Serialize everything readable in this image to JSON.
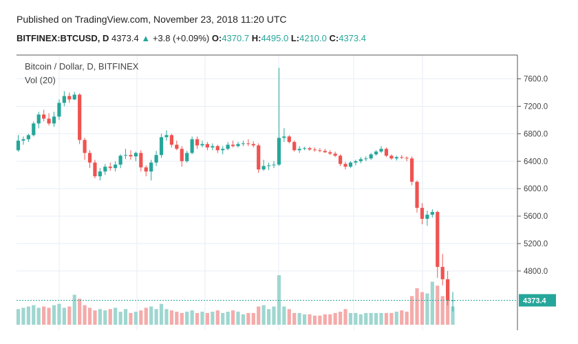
{
  "header": {
    "published": "Published on TradingView.com, November 23, 2018 11:20 UTC",
    "symbol": "BITFINEX:BTCUSD, D",
    "last": "4373.4",
    "arrow": "▲",
    "change": "+3.8 (+0.09%)",
    "o_label": "O:",
    "o_value": "4370.7",
    "h_label": "H:",
    "h_value": "4495.0",
    "l_label": "L:",
    "l_value": "4210.0",
    "c_label": "C:",
    "c_value": "4373.4"
  },
  "colors": {
    "up": "#26a69a",
    "down": "#ef5350",
    "vol_up": "#9fd6d0",
    "vol_down": "#f4abaa",
    "grid": "#e6eef5",
    "axis": "#555555"
  },
  "chart_data": {
    "type": "candlestick",
    "title": "Bitcoin / Dollar, D, BITFINEX",
    "volume_label": "Vol (20)",
    "y_ticks": [
      "7600.0",
      "7200.0",
      "6800.0",
      "6400.0",
      "6000.0",
      "5600.0",
      "5200.0",
      "4800.0"
    ],
    "ylim": [
      4210,
      7760
    ],
    "last_price": 4373.4,
    "last_price_label": "4373.4",
    "grid": true,
    "candles": [
      [
        6560,
        6780,
        6540,
        6700
      ],
      [
        6700,
        6760,
        6640,
        6720
      ],
      [
        6720,
        6800,
        6680,
        6780
      ],
      [
        6780,
        6980,
        6760,
        6950
      ],
      [
        6950,
        7120,
        6880,
        7080
      ],
      [
        7080,
        7150,
        6980,
        7020
      ],
      [
        7020,
        7100,
        6920,
        6950
      ],
      [
        6950,
        7120,
        6900,
        7050
      ],
      [
        7050,
        7300,
        7000,
        7250
      ],
      [
        7250,
        7420,
        7200,
        7350
      ],
      [
        7350,
        7400,
        7250,
        7300
      ],
      [
        7300,
        7410,
        7290,
        7370
      ],
      [
        7370,
        7390,
        6650,
        6710
      ],
      [
        6710,
        6740,
        6420,
        6520
      ],
      [
        6520,
        6560,
        6300,
        6380
      ],
      [
        6380,
        6420,
        6150,
        6180
      ],
      [
        6180,
        6300,
        6120,
        6250
      ],
      [
        6250,
        6360,
        6200,
        6320
      ],
      [
        6320,
        6380,
        6260,
        6300
      ],
      [
        6300,
        6400,
        6250,
        6350
      ],
      [
        6350,
        6500,
        6300,
        6480
      ],
      [
        6480,
        6580,
        6430,
        6490
      ],
      [
        6490,
        6560,
        6420,
        6470
      ],
      [
        6470,
        6540,
        6400,
        6520
      ],
      [
        6520,
        6560,
        6250,
        6310
      ],
      [
        6310,
        6340,
        6180,
        6250
      ],
      [
        6250,
        6420,
        6120,
        6380
      ],
      [
        6380,
        6550,
        6330,
        6490
      ],
      [
        6490,
        6800,
        6450,
        6750
      ],
      [
        6750,
        6850,
        6700,
        6780
      ],
      [
        6780,
        6800,
        6600,
        6640
      ],
      [
        6640,
        6700,
        6560,
        6580
      ],
      [
        6580,
        6620,
        6320,
        6400
      ],
      [
        6400,
        6550,
        6380,
        6520
      ],
      [
        6520,
        6760,
        6500,
        6720
      ],
      [
        6720,
        6760,
        6580,
        6630
      ],
      [
        6630,
        6700,
        6600,
        6650
      ],
      [
        6650,
        6680,
        6560,
        6600
      ],
      [
        6600,
        6660,
        6560,
        6620
      ],
      [
        6620,
        6640,
        6520,
        6560
      ],
      [
        6560,
        6620,
        6500,
        6580
      ],
      [
        6580,
        6680,
        6560,
        6640
      ],
      [
        6640,
        6700,
        6600,
        6620
      ],
      [
        6620,
        6680,
        6600,
        6650
      ],
      [
        6650,
        6700,
        6620,
        6660
      ],
      [
        6660,
        6720,
        6620,
        6650
      ],
      [
        6650,
        6690,
        6600,
        6630
      ],
      [
        6630,
        6660,
        6230,
        6280
      ],
      [
        6280,
        6420,
        6260,
        6330
      ],
      [
        6330,
        6380,
        6270,
        6340
      ],
      [
        6340,
        6400,
        6300,
        6350
      ],
      [
        6350,
        7760,
        6330,
        6740
      ],
      [
        6740,
        6880,
        6680,
        6760
      ],
      [
        6760,
        6780,
        6660,
        6680
      ],
      [
        6680,
        6700,
        6540,
        6560
      ],
      [
        6560,
        6620,
        6520,
        6580
      ],
      [
        6580,
        6610,
        6560,
        6590
      ],
      [
        6590,
        6610,
        6550,
        6570
      ],
      [
        6570,
        6600,
        6540,
        6560
      ],
      [
        6560,
        6590,
        6530,
        6550
      ],
      [
        6550,
        6580,
        6520,
        6530
      ],
      [
        6530,
        6560,
        6490,
        6510
      ],
      [
        6510,
        6540,
        6460,
        6480
      ],
      [
        6480,
        6500,
        6330,
        6360
      ],
      [
        6360,
        6390,
        6280,
        6320
      ],
      [
        6320,
        6400,
        6300,
        6380
      ],
      [
        6380,
        6420,
        6340,
        6400
      ],
      [
        6400,
        6460,
        6370,
        6430
      ],
      [
        6430,
        6470,
        6400,
        6440
      ],
      [
        6440,
        6520,
        6420,
        6500
      ],
      [
        6500,
        6560,
        6480,
        6540
      ],
      [
        6540,
        6620,
        6520,
        6580
      ],
      [
        6580,
        6600,
        6460,
        6480
      ],
      [
        6480,
        6500,
        6420,
        6440
      ],
      [
        6440,
        6480,
        6410,
        6460
      ],
      [
        6460,
        6490,
        6430,
        6450
      ],
      [
        6450,
        6470,
        6400,
        6440
      ],
      [
        6440,
        6470,
        6050,
        6100
      ],
      [
        6100,
        6120,
        5650,
        5720
      ],
      [
        5720,
        5790,
        5480,
        5560
      ],
      [
        5560,
        5680,
        5460,
        5620
      ],
      [
        5620,
        5700,
        5580,
        5660
      ],
      [
        5660,
        5680,
        4700,
        4860
      ],
      [
        4860,
        5050,
        4590,
        4680
      ],
      [
        4680,
        4800,
        4300,
        4370
      ],
      [
        4370,
        4495,
        4210,
        4373
      ]
    ],
    "volume": [
      12,
      13,
      14,
      15,
      13,
      14,
      13,
      15,
      16,
      13,
      14,
      23,
      20,
      15,
      13,
      11,
      12,
      11,
      12,
      13,
      10,
      12,
      9,
      10,
      11,
      13,
      14,
      12,
      16,
      12,
      11,
      10,
      9,
      10,
      11,
      9,
      10,
      9,
      10,
      11,
      9,
      10,
      11,
      10,
      8,
      9,
      9,
      14,
      15,
      12,
      14,
      38,
      14,
      12,
      9,
      9,
      8,
      8,
      7,
      7,
      8,
      8,
      9,
      10,
      12,
      9,
      9,
      8,
      9,
      9,
      9,
      9,
      9,
      9,
      10,
      11,
      10,
      22,
      28,
      25,
      24,
      33,
      30,
      22,
      19,
      14
    ]
  }
}
